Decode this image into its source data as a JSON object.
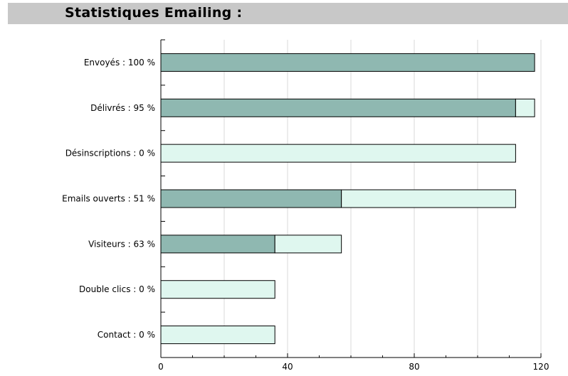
{
  "header": {
    "title": "Statistiques Emailing :"
  },
  "colors": {
    "front": "#8fb8b1",
    "back": "#dff7ef",
    "grid": "#d8d8d8",
    "header_bg": "#c8c8c8"
  },
  "chart_data": {
    "type": "bar",
    "orientation": "horizontal",
    "stacked": true,
    "title": "Statistiques Emailing :",
    "categories": [
      "Envoyés : 100 %",
      "Délivrés : 95 %",
      "Désinscriptions : 0 %",
      "Emails ouverts : 51 %",
      "Visiteurs : 63 %",
      "Double clics : 0 %",
      "Contact : 0 %"
    ],
    "series": [
      {
        "values": [
          118,
          112,
          0,
          57,
          36,
          0,
          0
        ]
      },
      {
        "values": [
          0,
          6,
          112,
          55,
          21,
          36,
          36
        ]
      }
    ],
    "xlim": [
      0,
      120
    ],
    "xticks": [
      0,
      40,
      80,
      120
    ],
    "grid": true
  }
}
